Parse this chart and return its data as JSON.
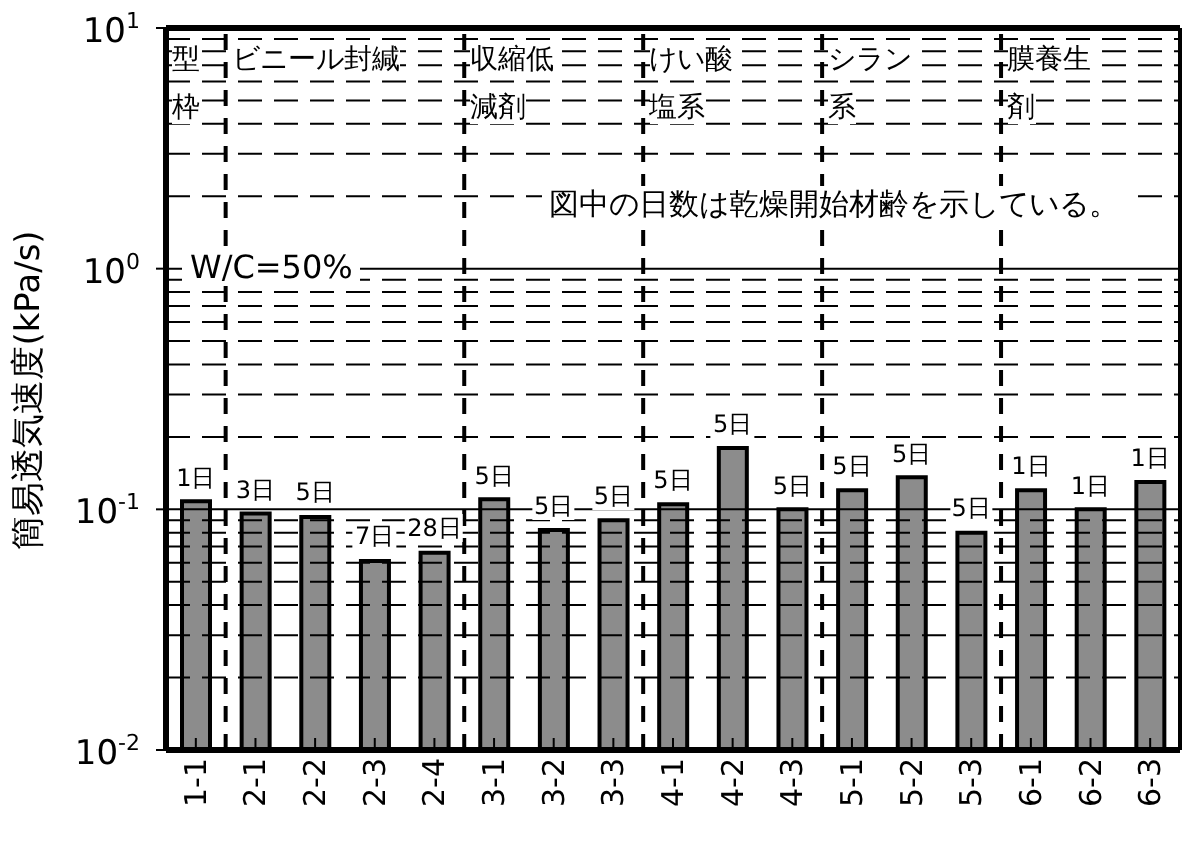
{
  "chart_data": {
    "type": "bar",
    "ylabel": "簡易透気速度(kPa/s)",
    "categories": [
      "1-1",
      "2-1",
      "2-2",
      "2-3",
      "2-4",
      "3-1",
      "3-2",
      "3-3",
      "4-1",
      "4-2",
      "4-3",
      "5-1",
      "5-2",
      "5-3",
      "6-1",
      "6-2",
      "6-3"
    ],
    "values": [
      0.108,
      0.096,
      0.093,
      0.061,
      0.066,
      0.11,
      0.082,
      0.09,
      0.105,
      0.18,
      0.1,
      0.12,
      0.136,
      0.08,
      0.12,
      0.1,
      0.13
    ],
    "color": "#8c8c8c",
    "log": true,
    "ylim": [
      0.01,
      10
    ],
    "yticks": [
      {
        "value": 0.01,
        "label": "10$^{-2}$"
      },
      {
        "value": 0.1,
        "label": "10$^{-1}$"
      },
      {
        "value": 1,
        "label": "10$^{0}$"
      },
      {
        "value": 10,
        "label": "10$^{1}$"
      }
    ],
    "grid": "y",
    "annotations": [
      "型枠",
      "ビニール封緘",
      "収縮低減剤",
      "けい酸塩系",
      "シラン系",
      "膜養生剤",
      "W/C=50%",
      "図中の日数は乾燥開始材齢を示している。",
      {
        "text": "1日",
        "x": "1-1",
        "y": 0.108
      },
      {
        "text": "3日",
        "x": "2-1",
        "y": 0.096
      },
      {
        "text": "5日",
        "x": "2-2",
        "y": 0.093
      },
      {
        "text": "7日",
        "x": "2-3",
        "y": 0.061
      },
      {
        "text": "28日",
        "x": "2-4",
        "y": 0.066
      },
      {
        "text": "5日",
        "x": "3-1",
        "y": 0.11
      },
      {
        "text": "5日",
        "x": "3-2",
        "y": 0.082
      },
      {
        "text": "5日",
        "x": "3-3",
        "y": 0.09
      },
      {
        "text": "5日",
        "x": "4-1",
        "y": 0.105
      },
      {
        "text": "5日",
        "x": "4-2",
        "y": 0.18
      },
      {
        "text": "5日",
        "x": "4-3",
        "y": 0.1
      },
      {
        "text": "5日",
        "x": "5-1",
        "y": 0.12
      },
      {
        "text": "5日",
        "x": "5-2",
        "y": 0.136
      },
      {
        "text": "5日",
        "x": "5-3",
        "y": 0.08
      },
      {
        "text": "1日",
        "x": "6-1",
        "y": 0.12
      },
      {
        "text": "1日",
        "x": "6-2",
        "y": 0.1
      },
      {
        "text": "1日",
        "x": "6-3",
        "y": 0.13
      }
    ]
  }
}
